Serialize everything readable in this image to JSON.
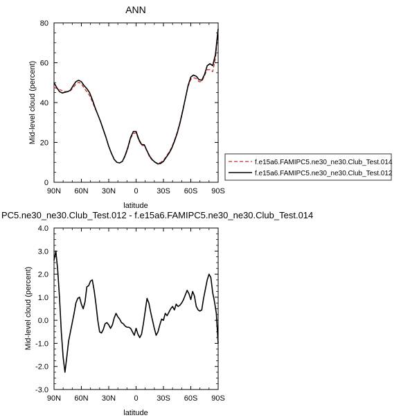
{
  "chart_data": [
    {
      "type": "line",
      "title": "ANN",
      "xlabel": "latitude",
      "ylabel": "Mid-level cloud (percent)",
      "xlim": [
        90,
        -90
      ],
      "ylim": [
        0,
        80
      ],
      "xticks": [
        90,
        60,
        30,
        0,
        -30,
        -60,
        -90
      ],
      "xtick_labels": [
        "90N",
        "60N",
        "30N",
        "0",
        "30S",
        "60S",
        "90S"
      ],
      "yticks": [
        0,
        20,
        40,
        60,
        80
      ],
      "ytick_labels": [
        "0",
        "20",
        "40",
        "60",
        "80"
      ],
      "grid": false,
      "legend_position": "right",
      "series": [
        {
          "name": "f.e15a6.FAMIPC5.ne30_ne30.Club_Test.014",
          "color": "#d62728",
          "dash": "dashed",
          "x": [
            90,
            87,
            84,
            81,
            78,
            75,
            72,
            69,
            66,
            63,
            60,
            57,
            54,
            51,
            48,
            45,
            42,
            39,
            36,
            33,
            30,
            27,
            24,
            21,
            18,
            15,
            12,
            9,
            6,
            3,
            0,
            -3,
            -6,
            -9,
            -12,
            -15,
            -18,
            -21,
            -24,
            -27,
            -30,
            -33,
            -36,
            -39,
            -42,
            -45,
            -48,
            -51,
            -54,
            -57,
            -60,
            -63,
            -66,
            -69,
            -72,
            -75,
            -78,
            -81,
            -84,
            -87,
            -90
          ],
          "y": [
            47.5,
            47.2,
            46.5,
            46,
            45.5,
            45.5,
            46,
            47.5,
            49.2,
            50.2,
            49.5,
            47.2,
            45.5,
            43.5,
            40.5,
            37,
            34,
            30.5,
            26.5,
            22.5,
            18,
            14.5,
            11.5,
            10,
            9.7,
            10.5,
            13,
            17,
            22,
            24.5,
            24.8,
            21,
            18.5,
            18.5,
            15.5,
            12.5,
            11,
            10,
            9.5,
            10,
            11,
            13,
            15,
            17.5,
            21,
            25,
            30,
            36,
            42,
            48,
            51.7,
            52.5,
            52,
            50.5,
            50.5,
            53.5,
            56.5,
            56.5,
            55.5,
            62,
            76
          ]
        },
        {
          "name": "f.e15a6.FAMIPC5.ne30_ne30.Club_Test.012",
          "color": "#000000",
          "dash": "solid",
          "x": [
            90,
            87,
            84,
            81,
            78,
            75,
            72,
            69,
            66,
            63,
            60,
            57,
            54,
            51,
            48,
            45,
            42,
            39,
            36,
            33,
            30,
            27,
            24,
            21,
            18,
            15,
            12,
            9,
            6,
            3,
            0,
            -3,
            -6,
            -9,
            -12,
            -15,
            -18,
            -21,
            -24,
            -27,
            -30,
            -33,
            -36,
            -39,
            -42,
            -45,
            -48,
            -51,
            -54,
            -57,
            -60,
            -63,
            -66,
            -69,
            -72,
            -75,
            -78,
            -81,
            -84,
            -87,
            -90
          ],
          "y": [
            50,
            47.5,
            45.5,
            44.8,
            45.2,
            45.5,
            46.2,
            48.5,
            50.5,
            51.2,
            50.5,
            48.5,
            47,
            45,
            41.5,
            37.5,
            34,
            30.5,
            26.5,
            22.5,
            18,
            14.5,
            11.5,
            10,
            9.7,
            10.5,
            13.5,
            17.5,
            22.5,
            25.5,
            25.5,
            21.5,
            19,
            18.8,
            15.8,
            13,
            11.2,
            10,
            9.2,
            9.5,
            10.5,
            12.5,
            14.5,
            17,
            20.5,
            24.5,
            29.5,
            35.5,
            42,
            48.5,
            52.8,
            53.8,
            53.2,
            51.5,
            51.2,
            54,
            58.5,
            59.5,
            58.5,
            64,
            77
          ]
        }
      ]
    },
    {
      "type": "line",
      "title": "PC5.ne30_ne30.Club_Test.012 - f.e15a6.FAMIPC5.ne30_ne30.Club_Test.014",
      "xlabel": "latitude",
      "ylabel": "Mid-level cloud (percent)",
      "xlim": [
        90,
        -90
      ],
      "ylim": [
        -3,
        4
      ],
      "xticks": [
        90,
        60,
        30,
        0,
        -30,
        -60,
        -90
      ],
      "xtick_labels": [
        "90N",
        "60N",
        "30N",
        "0",
        "30S",
        "60S",
        "90S"
      ],
      "yticks": [
        -3,
        -2,
        -1,
        0,
        1,
        2,
        3,
        4
      ],
      "ytick_labels": [
        "-3.0",
        "-2.0",
        "-1.0",
        "0.0",
        "1.0",
        "2.0",
        "3.0",
        "4.0"
      ],
      "grid": false,
      "series": [
        {
          "color": "#000000",
          "dash": "solid",
          "x": [
            90,
            88,
            86,
            84,
            82,
            80,
            78,
            76,
            74,
            72,
            70,
            68,
            66,
            64,
            62,
            60,
            58,
            56,
            54,
            52,
            50,
            48,
            46,
            44,
            42,
            40,
            38,
            36,
            34,
            32,
            30,
            28,
            26,
            24,
            22,
            20,
            18,
            16,
            14,
            12,
            10,
            8,
            6,
            4,
            2,
            0,
            -2,
            -4,
            -6,
            -8,
            -10,
            -12,
            -14,
            -16,
            -18,
            -20,
            -22,
            -24,
            -26,
            -28,
            -30,
            -32,
            -34,
            -36,
            -38,
            -40,
            -42,
            -44,
            -46,
            -48,
            -50,
            -52,
            -54,
            -56,
            -58,
            -60,
            -62,
            -64,
            -66,
            -68,
            -70,
            -72,
            -74,
            -76,
            -78,
            -80,
            -82,
            -84,
            -86,
            -88,
            -90
          ],
          "y": [
            2.6,
            3.0,
            2.2,
            1.0,
            -0.5,
            -1.6,
            -2.25,
            -1.6,
            -0.9,
            -0.5,
            -0.1,
            0.3,
            0.75,
            0.95,
            1.0,
            0.7,
            0.5,
            0.8,
            1.45,
            1.5,
            1.7,
            1.75,
            1.3,
            0.7,
            0.0,
            -0.5,
            -0.55,
            -0.4,
            -0.15,
            -0.1,
            -0.2,
            -0.35,
            -0.2,
            0.1,
            0.3,
            0.15,
            0.05,
            -0.1,
            -0.15,
            -0.25,
            -0.3,
            -0.3,
            -0.35,
            -0.5,
            -0.65,
            -0.35,
            -0.6,
            -0.75,
            -0.6,
            -0.15,
            0.4,
            0.95,
            0.75,
            0.35,
            0.0,
            -0.35,
            -0.65,
            -0.5,
            -0.2,
            0.05,
            0.0,
            0.3,
            0.2,
            0.35,
            0.5,
            0.6,
            0.45,
            0.7,
            0.6,
            0.65,
            0.75,
            0.9,
            1.1,
            1.3,
            1.15,
            0.9,
            1.25,
            1.05,
            0.6,
            0.45,
            0.4,
            0.45,
            0.95,
            1.35,
            1.75,
            2.0,
            1.85,
            1.2,
            0.8,
            0.3,
            -1.0
          ]
        }
      ]
    }
  ]
}
